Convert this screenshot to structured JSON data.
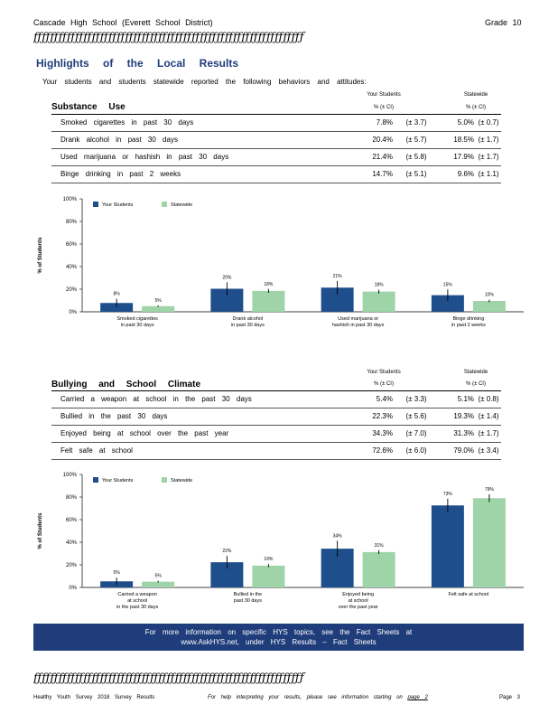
{
  "header": {
    "school": "Cascade   High   School   (Everett   School   District)",
    "grade": "Grade   10"
  },
  "rule_glyphs": "ƒƒƒƒƒƒƒƒƒƒƒƒƒƒƒƒƒƒƒƒƒƒƒƒƒƒƒƒƒƒƒƒƒƒƒƒƒƒƒƒƒƒƒƒƒƒƒƒƒƒƒƒƒƒƒƒƒƒƒƒƒƒƒƒƒ",
  "title": "Highlights of the Local Results",
  "intro": "Your students and students statewide reported the following behaviors and attitudes:",
  "col_headers": {
    "yours": "Your Students",
    "state": "Statewide",
    "ci": "% (± CI)"
  },
  "substance": {
    "title": "Substance Use",
    "rows": [
      {
        "label": "Smoked cigarettes in past 30 days",
        "v1": "7.8%",
        "c1": "(± 3.7)",
        "v2": "5.0%",
        "c2": "(± 0.7)"
      },
      {
        "label": "Drank alcohol in past 30 days",
        "v1": "20.4%",
        "c1": "(± 5.7)",
        "v2": "18.5%",
        "c2": "(± 1.7)"
      },
      {
        "label": "Used marijuana or hashish in past 30 days",
        "v1": "21.4%",
        "c1": "(± 5.8)",
        "v2": "17.9%",
        "c2": "(± 1.7)"
      },
      {
        "label": "Binge drinking in past 2 weeks",
        "v1": "14.7%",
        "c1": "(± 5.1)",
        "v2": "9.6%",
        "c2": "(± 1.1)"
      }
    ]
  },
  "bullying": {
    "title": "Bullying and School Climate",
    "rows": [
      {
        "label": "Carried a weapon at school in the past 30 days",
        "v1": "5.4%",
        "c1": "(± 3.3)",
        "v2": "5.1%",
        "c2": "(± 0.8)"
      },
      {
        "label": "Bullied in the past 30 days",
        "v1": "22.3%",
        "c1": "(± 5.6)",
        "v2": "19.3%",
        "c2": "(± 1.4)"
      },
      {
        "label": "Enjoyed being at school over the past year",
        "v1": "34.3%",
        "c1": "(± 7.0)",
        "v2": "31.3%",
        "c2": "(± 1.7)"
      },
      {
        "label": "Felt safe at school",
        "v1": "72.6%",
        "c1": "(± 6.0)",
        "v2": "79.0%",
        "c2": "(± 3.4)"
      }
    ]
  },
  "colors": {
    "yours": "#1f4e8c",
    "state": "#9fd4a8",
    "banner": "#1f3d7a"
  },
  "chart_data": [
    {
      "type": "bar",
      "ylabel": "% of Students",
      "ylim": [
        0,
        100
      ],
      "yticks": [
        "0%",
        "20%",
        "40%",
        "60%",
        "80%",
        "100%"
      ],
      "legend": "top-left",
      "categories": [
        "Smoked cigarettes in past 30 days",
        "Drank alcohol in past 30 days",
        "Used marijuana or hashish in past 30 days",
        "Binge drinking in past 2 weeks"
      ],
      "category_lines": [
        [
          "Smoked   cigarettes",
          "in  past  30  days"
        ],
        [
          "Drank   alcohol",
          "in  past  30  days"
        ],
        [
          "Used   marijuana   or",
          "hashish   in  past  30  days"
        ],
        [
          "Binge   drinking",
          "in  past  2  weeks"
        ]
      ],
      "series": [
        {
          "name": "Your Students",
          "values": [
            7.8,
            20.4,
            21.4,
            14.7
          ],
          "ci": [
            3.7,
            5.7,
            5.8,
            5.1
          ],
          "labels": [
            "8%",
            "20%",
            "21%",
            "15%"
          ]
        },
        {
          "name": "Statewide",
          "values": [
            5.0,
            18.5,
            17.9,
            9.6
          ],
          "ci": [
            0.7,
            1.7,
            1.7,
            1.1
          ],
          "labels": [
            "5%",
            "18%",
            "18%",
            "10%"
          ]
        }
      ]
    },
    {
      "type": "bar",
      "ylabel": "% of Students",
      "ylim": [
        0,
        100
      ],
      "yticks": [
        "0%",
        "20%",
        "40%",
        "60%",
        "80%",
        "100%"
      ],
      "legend": "top-left",
      "categories": [
        "Carried a weapon at school in the past 30 days",
        "Bullied in the past 30 days",
        "Enjoyed being at school over the past year",
        "Felt safe at school"
      ],
      "category_lines": [
        [
          "Carried   a  weapon",
          "at  school",
          "in  the  past  30  days"
        ],
        [
          "Bullied   in  the",
          "past  30  days"
        ],
        [
          "Enjoyed   being",
          "at  school",
          "over  the  past  year"
        ],
        [
          "Felt  safe  at  school"
        ]
      ],
      "series": [
        {
          "name": "Your Students",
          "values": [
            5.4,
            22.3,
            34.3,
            72.6
          ],
          "ci": [
            3.3,
            5.6,
            7.0,
            6.0
          ],
          "labels": [
            "5%",
            "22%",
            "34%",
            "73%"
          ]
        },
        {
          "name": "Statewide",
          "values": [
            5.1,
            19.3,
            31.3,
            79.0
          ],
          "ci": [
            0.8,
            1.4,
            1.7,
            3.4
          ],
          "labels": [
            "5%",
            "19%",
            "31%",
            "79%"
          ]
        }
      ]
    }
  ],
  "banner": {
    "line1": "For more information on specific HYS topics, see the Fact Sheets at",
    "line2": "www.AskHYS.net, under HYS Results – Fact Sheets"
  },
  "footer": {
    "left": "Healthy  Youth  Survey  2018  Survey  Results",
    "mid": "For  help  interpreting  your  results,  please  see  information  starting  on",
    "page_ref": "page  2",
    "right": "Page  3"
  }
}
